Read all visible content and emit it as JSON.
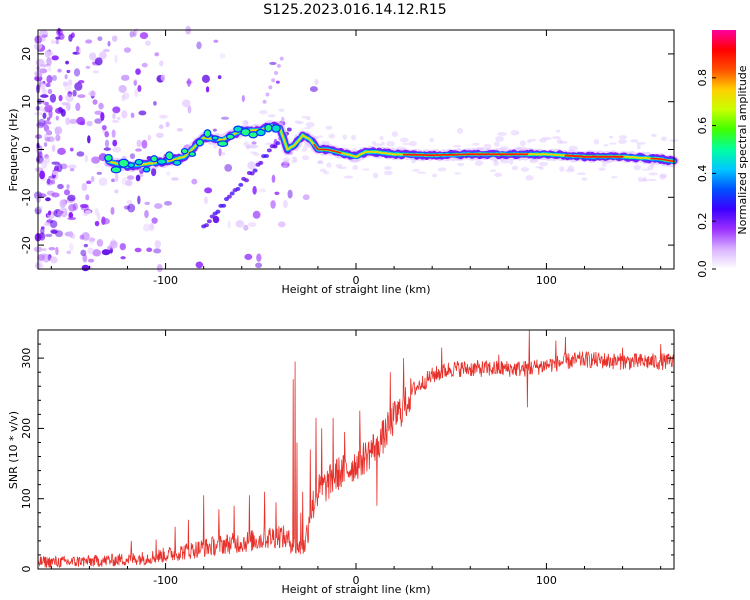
{
  "title": "S125.2023.016.14.12.R15",
  "chart_data": [
    {
      "type": "heatmap",
      "xlabel": "Height of straight line (km)",
      "ylabel": "Frequency (Hz)",
      "xlim": [
        -167,
        167
      ],
      "ylim": [
        -25,
        25
      ],
      "x_ticks": [
        -100,
        0,
        100
      ],
      "y_ticks": [
        -20,
        -10,
        0,
        10,
        20
      ],
      "ridge": {
        "x": [
          -130,
          -120,
          -110,
          -100,
          -90,
          -80,
          -70,
          -60,
          -50,
          -45,
          -40,
          -36,
          -32,
          -28,
          -24,
          -20,
          -15,
          -10,
          -5,
          0,
          5,
          10,
          20,
          40,
          60,
          80,
          100,
          120,
          140,
          160,
          167
        ],
        "y": [
          -2.5,
          -3.5,
          -3.0,
          -2.5,
          -1.5,
          2.5,
          2.0,
          4.0,
          4.0,
          5.0,
          4.5,
          0.0,
          1.0,
          3.0,
          2.0,
          0.0,
          0.0,
          -0.5,
          -1.0,
          -1.5,
          -0.5,
          -0.5,
          -1.0,
          -1.2,
          -1.0,
          -1.0,
          -1.0,
          -1.5,
          -1.5,
          -2.0,
          -2.5
        ]
      },
      "colorbar": {
        "label": "Normalized spectral amplitude",
        "range": [
          0,
          1
        ],
        "ticks": [
          "0.0",
          "0.2",
          "0.4",
          "0.6",
          "0.8"
        ],
        "colors": [
          "#ffffff",
          "#d9b3ff",
          "#9b30ff",
          "#3b00ff",
          "#0050ff",
          "#00c8ff",
          "#00ffa0",
          "#40ff00",
          "#c8ff00",
          "#ffd000",
          "#ff5000",
          "#ff0000",
          "#ff00a0"
        ]
      }
    },
    {
      "type": "line",
      "xlabel": "Height of straight line (km)",
      "ylabel": "SNR (10 * v/v)",
      "xlim": [
        -167,
        167
      ],
      "ylim": [
        0,
        340
      ],
      "x_ticks": [
        -100,
        0,
        100
      ],
      "y_ticks": [
        0,
        100,
        200,
        300
      ],
      "color": "#e8302a",
      "series": [
        {
          "x": [
            -167,
            -150,
            -130,
            -120,
            -110,
            -100,
            -90,
            -80,
            -70,
            -60,
            -50,
            -40,
            -35,
            -30,
            -27,
            -24,
            -20,
            -15,
            -10,
            -5,
            0,
            5,
            10,
            15,
            20,
            25,
            30,
            40,
            50,
            60,
            80,
            90,
            100,
            110,
            120,
            140,
            160,
            167
          ],
          "y": [
            10,
            10,
            12,
            14,
            16,
            20,
            25,
            30,
            35,
            38,
            42,
            48,
            40,
            30,
            32,
            80,
            110,
            120,
            135,
            140,
            150,
            160,
            175,
            190,
            215,
            230,
            255,
            275,
            285,
            285,
            285,
            285,
            290,
            295,
            298,
            295,
            295,
            295
          ]
        }
      ],
      "spikes": [
        {
          "x": -145,
          "y": 15
        },
        {
          "x": -130,
          "y": 18
        },
        {
          "x": -118,
          "y": 40
        },
        {
          "x": -105,
          "y": 42
        },
        {
          "x": -95,
          "y": 60
        },
        {
          "x": -88,
          "y": 70
        },
        {
          "x": -80,
          "y": 105
        },
        {
          "x": -72,
          "y": 85
        },
        {
          "x": -64,
          "y": 90
        },
        {
          "x": -56,
          "y": 105
        },
        {
          "x": -48,
          "y": 110
        },
        {
          "x": -42,
          "y": 95
        },
        {
          "x": -33,
          "y": 270
        },
        {
          "x": -32,
          "y": 295
        },
        {
          "x": -31,
          "y": 180
        },
        {
          "x": -29,
          "y": 80
        },
        {
          "x": -28,
          "y": 110
        },
        {
          "x": -24,
          "y": 170
        },
        {
          "x": -21,
          "y": 215
        },
        {
          "x": -18,
          "y": 200
        },
        {
          "x": -12,
          "y": 215
        },
        {
          "x": -6,
          "y": 195
        },
        {
          "x": 2,
          "y": 225
        },
        {
          "x": 11,
          "y": 90
        },
        {
          "x": 18,
          "y": 280
        },
        {
          "x": 25,
          "y": 300
        },
        {
          "x": 45,
          "y": 315
        },
        {
          "x": 75,
          "y": 305
        },
        {
          "x": 90,
          "y": 230
        },
        {
          "x": 91,
          "y": 340
        },
        {
          "x": 105,
          "y": 325
        },
        {
          "x": 110,
          "y": 330
        },
        {
          "x": 140,
          "y": 315
        },
        {
          "x": 160,
          "y": 320
        }
      ]
    }
  ]
}
